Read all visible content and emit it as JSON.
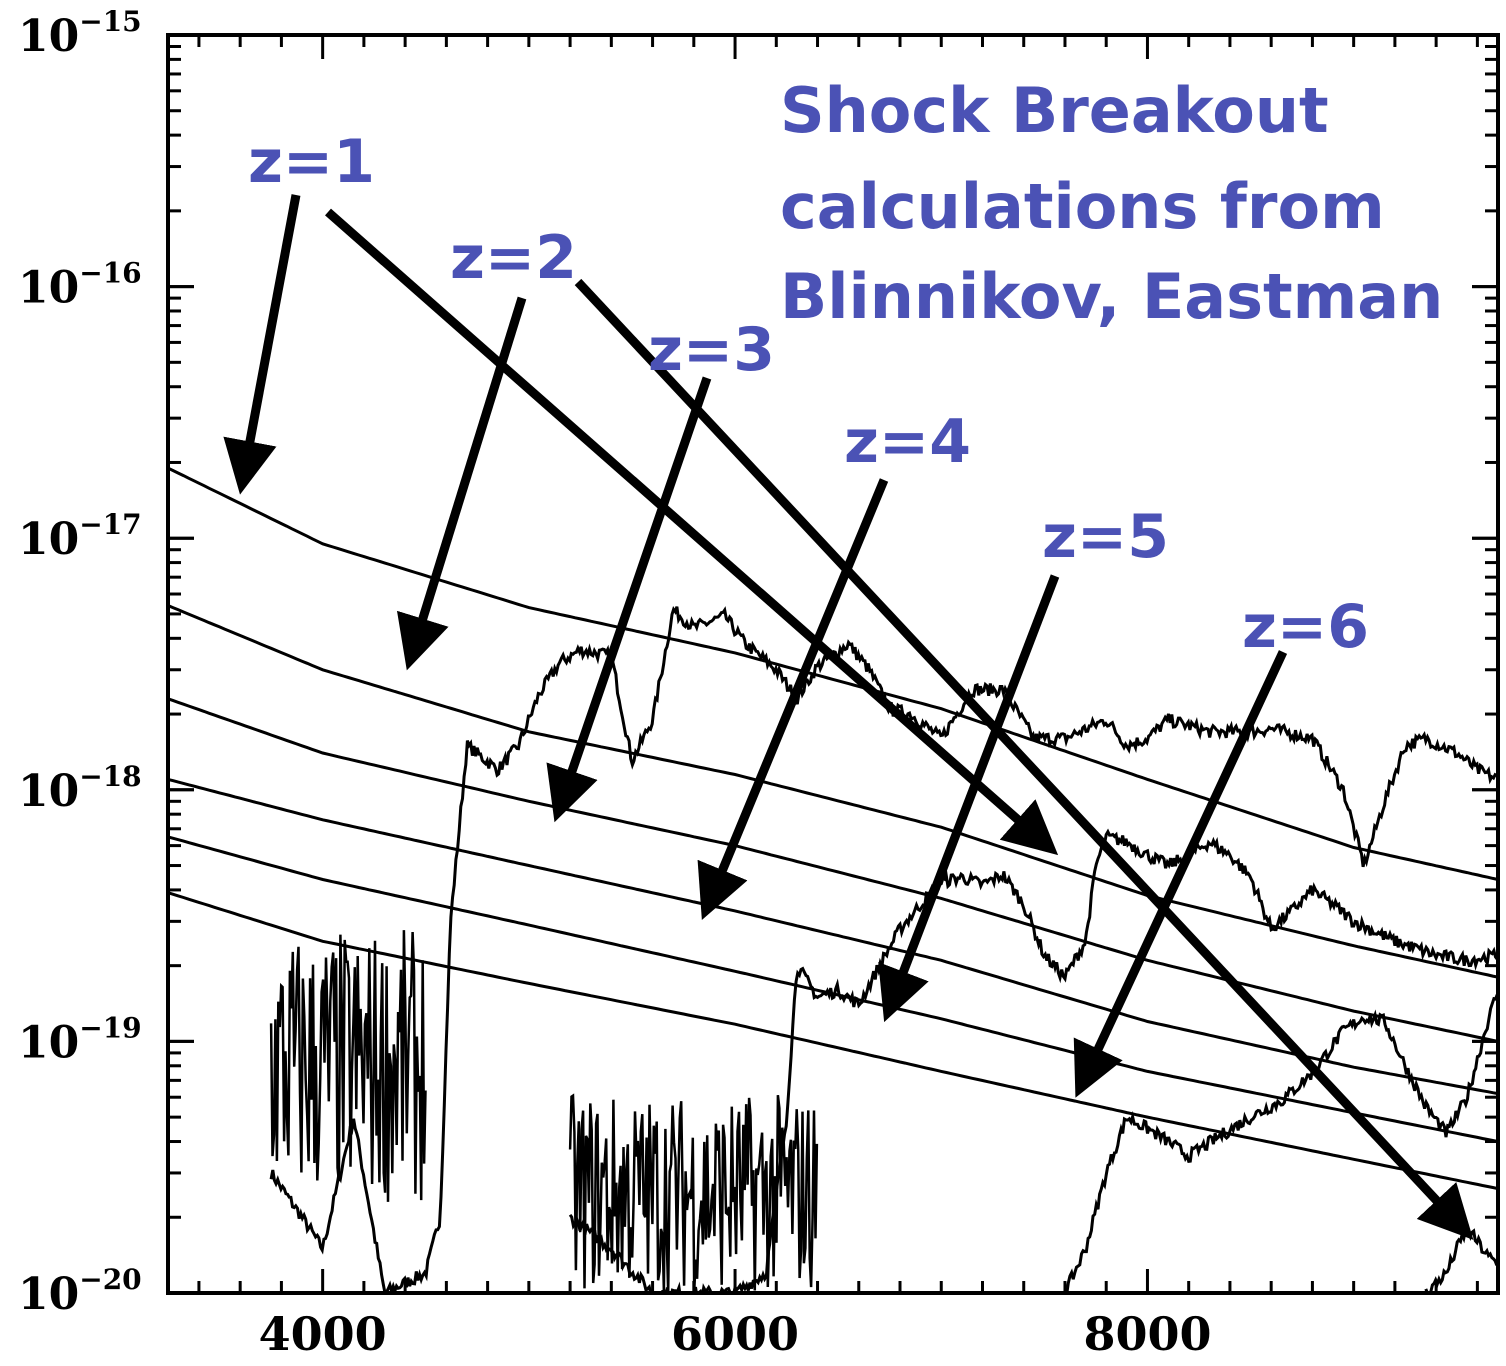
{
  "chart_data": {
    "type": "line",
    "title": "",
    "xlabel": "",
    "ylabel": "",
    "xlim": [
      3250,
      9700
    ],
    "ylim": [
      1e-20,
      1e-15
    ],
    "y_scale": "log",
    "x_ticks": [
      {
        "value": 4000,
        "label": "4000"
      },
      {
        "value": 6000,
        "label": "6000"
      },
      {
        "value": 8000,
        "label": "8000"
      }
    ],
    "y_ticks": [
      {
        "value": 1e-15,
        "base": "10",
        "exp": "−15"
      },
      {
        "value": 1e-16,
        "base": "10",
        "exp": "−16"
      },
      {
        "value": 1e-17,
        "base": "10",
        "exp": "−17"
      },
      {
        "value": 1e-18,
        "base": "10",
        "exp": "−18"
      },
      {
        "value": 1e-19,
        "base": "10",
        "exp": "−19"
      },
      {
        "value": 1e-20,
        "base": "10",
        "exp": "−20"
      }
    ],
    "smooth_curves": [
      {
        "x": [
          3250,
          4000,
          5000,
          6000,
          7000,
          8000,
          9000,
          9700
        ],
        "y": [
          1.9e-17,
          9.5e-18,
          5.3e-18,
          3.5e-18,
          2.1e-18,
          1.1e-18,
          5.9e-19,
          4.4e-19
        ]
      },
      {
        "x": [
          3250,
          4000,
          5000,
          6000,
          7000,
          8000,
          9000,
          9700
        ],
        "y": [
          5.4e-18,
          3e-18,
          1.7e-18,
          1.15e-18,
          7.1e-19,
          3.8e-19,
          2.4e-19,
          1.8e-19
        ]
      },
      {
        "x": [
          3250,
          4000,
          5000,
          6000,
          7000,
          8000,
          9000,
          9700
        ],
        "y": [
          2.3e-18,
          1.4e-18,
          9e-19,
          6e-19,
          3.7e-19,
          2.1e-19,
          1.32e-19,
          1e-19
        ]
      },
      {
        "x": [
          3250,
          4000,
          5000,
          6000,
          7000,
          8000,
          9000,
          9700
        ],
        "y": [
          1.1e-18,
          7.6e-19,
          5e-19,
          3.3e-19,
          2.1e-19,
          1.2e-19,
          7.9e-20,
          6.2e-20
        ]
      },
      {
        "x": [
          3250,
          4000,
          5000,
          6000,
          7000,
          8000,
          9000,
          9700
        ],
        "y": [
          6.5e-19,
          4.4e-19,
          2.9e-19,
          1.9e-19,
          1.23e-19,
          7.6e-20,
          5.2e-20,
          4e-20
        ]
      },
      {
        "x": [
          3250,
          4000,
          5000,
          6000,
          7000,
          8000,
          9000,
          9700
        ],
        "y": [
          3.9e-19,
          2.5e-19,
          1.7e-19,
          1.17e-19,
          7.6e-20,
          5e-20,
          3.4e-20,
          2.6e-20
        ]
      }
    ],
    "spectra": [
      {
        "x": [
          3750,
          3900,
          4000,
          4150,
          4300,
          4500,
          4570,
          4620,
          4700,
          4850,
          4950,
          5050,
          5150,
          5250,
          5400,
          5500,
          5600,
          5700,
          5800,
          5950,
          6050,
          6200,
          6300,
          6400,
          6550,
          6650,
          6750,
          6850,
          7000,
          7150,
          7300,
          7450,
          7600,
          7800,
          7900,
          8000,
          8100,
          8200,
          8300,
          8500,
          8600,
          8800,
          8950,
          9050,
          9150,
          9250,
          9350,
          9500,
          9600,
          9700
        ],
        "y": [
          3e-20,
          2e-20,
          1.5e-20,
          5e-20,
          1e-20,
          1.2e-20,
          2e-20,
          3e-19,
          1.5e-18,
          1.2e-18,
          1.5e-18,
          2.4e-18,
          3.2e-18,
          3.6e-18,
          3.4e-18,
          1.3e-18,
          1.9e-18,
          5.2e-18,
          4.4e-18,
          4.9e-18,
          3.8e-18,
          3e-18,
          2.3e-18,
          3.1e-18,
          3.8e-18,
          3e-18,
          2.1e-18,
          2e-18,
          1.6e-18,
          2.5e-18,
          2.5e-18,
          1.6e-18,
          1.6e-18,
          1.9e-18,
          1.5e-18,
          1.6e-18,
          1.9e-18,
          1.8e-18,
          1.7e-18,
          1.7e-18,
          1.75e-18,
          1.6e-18,
          1e-18,
          5e-19,
          9e-19,
          1.5e-18,
          1.6e-18,
          1.4e-18,
          1.2e-18,
          1.1e-18
        ]
      },
      {
        "x": [
          5200,
          5400,
          5600,
          5800,
          6000,
          6150,
          6250,
          6300,
          6400,
          6500,
          6600,
          6700,
          6800,
          6900,
          7000,
          7100,
          7200,
          7300,
          7400,
          7500,
          7600,
          7700,
          7750,
          7800,
          7900,
          8000,
          8100,
          8200,
          8300,
          8400,
          8500,
          8600,
          8700,
          8800,
          8900,
          9000,
          9200,
          9400,
          9550,
          9700
        ],
        "y": [
          2e-20,
          1.5e-20,
          1e-20,
          1e-20,
          1e-20,
          1.2e-20,
          5e-20,
          2e-19,
          1.5e-19,
          1.6e-19,
          1.4e-19,
          2e-19,
          2.8e-19,
          3.5e-19,
          4.3e-19,
          4.5e-19,
          4.2e-19,
          4.6e-19,
          3.5e-19,
          2.2e-19,
          1.8e-19,
          2.5e-19,
          5e-19,
          6.5e-19,
          6.2e-19,
          5.5e-19,
          5e-19,
          5.5e-19,
          6.2e-19,
          5.5e-19,
          4.5e-19,
          2.8e-19,
          3.3e-19,
          4e-19,
          3.5e-19,
          3e-19,
          2.5e-19,
          2.2e-19,
          2.1e-19,
          2.2e-19
        ]
      },
      {
        "x": [
          7600,
          7700,
          7800,
          7900,
          8000,
          8100,
          8200,
          8350,
          8500,
          8650,
          8800,
          8950,
          9050,
          9150,
          9250,
          9350,
          9450,
          9550,
          9650,
          9700
        ],
        "y": [
          1e-20,
          1.5e-20,
          3e-20,
          5e-20,
          4.5e-20,
          4e-20,
          3.5e-20,
          4.2e-20,
          5e-20,
          5.8e-20,
          7.5e-20,
          1.1e-19,
          1.25e-19,
          1.2e-19,
          8e-20,
          5.5e-20,
          4.3e-20,
          6e-20,
          1.2e-19,
          1.6e-19
        ]
      },
      {
        "x": [
          9350,
          9450,
          9500,
          9550,
          9600,
          9650,
          9700
        ],
        "y": [
          1e-20,
          1.2e-20,
          1.5e-20,
          1.8e-20,
          1.6e-20,
          1.4e-20,
          1.3e-20
        ]
      }
    ],
    "noisy_spectra": [
      {
        "x_start": 3750,
        "x_end": 4500,
        "y_center": 8e-20,
        "y_spread": 3.5
      },
      {
        "x_start": 5200,
        "x_end": 6400,
        "y_center": 2.5e-20,
        "y_spread": 2.5
      }
    ],
    "annotations": [
      {
        "text": "z=1",
        "color": "#4b52b5"
      },
      {
        "text": "z=2",
        "color": "#4b52b5"
      },
      {
        "text": "z=3",
        "color": "#4b52b5"
      },
      {
        "text": "z=4",
        "color": "#4b52b5"
      },
      {
        "text": "z=5",
        "color": "#4b52b5"
      },
      {
        "text": "z=6",
        "color": "#4b52b5"
      }
    ],
    "note_lines": [
      "Shock Breakout",
      "calculations from",
      "Blinnikov, Eastman"
    ],
    "colors": {
      "annotation": "#4b52b5",
      "ink": "#000000"
    }
  }
}
